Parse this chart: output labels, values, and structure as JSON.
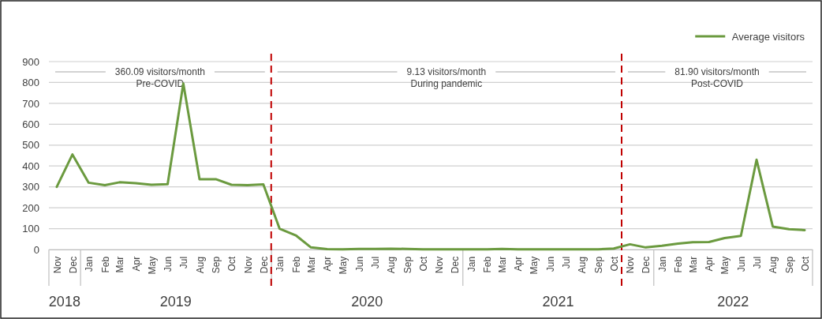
{
  "chart_data": {
    "type": "line",
    "x": [
      "2018-11",
      "2018-12",
      "2019-01",
      "2019-02",
      "2019-03",
      "2019-04",
      "2019-05",
      "2019-06",
      "2019-07",
      "2019-08",
      "2019-09",
      "2019-10",
      "2019-11",
      "2019-12",
      "2020-01",
      "2020-02",
      "2020-03",
      "2020-04",
      "2020-05",
      "2020-06",
      "2020-07",
      "2020-08",
      "2020-09",
      "2020-10",
      "2020-11",
      "2020-12",
      "2021-01",
      "2021-02",
      "2021-03",
      "2021-04",
      "2021-05",
      "2021-06",
      "2021-07",
      "2021-08",
      "2021-09",
      "2021-10",
      "2021-11",
      "2021-12",
      "2022-01",
      "2022-02",
      "2022-03",
      "2022-04",
      "2022-05",
      "2022-06",
      "2022-07",
      "2022-08",
      "2022-09",
      "2022-10"
    ],
    "series": [
      {
        "name": "Average visitors",
        "color": "#6b9a3f",
        "values": [
          300,
          455,
          320,
          308,
          322,
          318,
          310,
          313,
          795,
          337,
          337,
          310,
          308,
          312,
          100,
          68,
          10,
          2,
          1,
          3,
          3,
          4,
          3,
          1,
          1,
          1,
          1,
          1,
          3,
          1,
          1,
          1,
          1,
          1,
          1,
          5,
          25,
          10,
          18,
          28,
          35,
          36,
          55,
          65,
          430,
          110,
          97,
          93
        ]
      }
    ],
    "xlim": [
      "2018-10-17",
      "2022-10-16"
    ],
    "xticks": [
      {
        "value": "2018-11",
        "label": "Nov"
      },
      {
        "value": "2018-12",
        "label": "Dec"
      },
      {
        "value": "2019-01",
        "label": "Jan"
      },
      {
        "value": "2019-02",
        "label": "Feb"
      },
      {
        "value": "2019-03",
        "label": "Mar"
      },
      {
        "value": "2019-04",
        "label": "Apr"
      },
      {
        "value": "2019-05",
        "label": "May"
      },
      {
        "value": "2019-06",
        "label": "Jun"
      },
      {
        "value": "2019-07",
        "label": "Jul"
      },
      {
        "value": "2019-08",
        "label": "Aug"
      },
      {
        "value": "2019-09",
        "label": "Sep"
      },
      {
        "value": "2019-10",
        "label": "Oct"
      },
      {
        "value": "2019-11",
        "label": "Nov"
      },
      {
        "value": "2019-12",
        "label": "Dec"
      },
      {
        "value": "2020-01",
        "label": "Jan"
      },
      {
        "value": "2020-02",
        "label": "Feb"
      },
      {
        "value": "2020-03",
        "label": "Mar"
      },
      {
        "value": "2020-04",
        "label": "Apr"
      },
      {
        "value": "2020-05",
        "label": "May"
      },
      {
        "value": "2020-06",
        "label": "Jun"
      },
      {
        "value": "2020-07",
        "label": "Jul"
      },
      {
        "value": "2020-08",
        "label": "Aug"
      },
      {
        "value": "2020-09",
        "label": "Sep"
      },
      {
        "value": "2020-10",
        "label": "Oct"
      },
      {
        "value": "2020-11",
        "label": "Nov"
      },
      {
        "value": "2020-12",
        "label": "Dec"
      },
      {
        "value": "2021-01",
        "label": "Jan"
      },
      {
        "value": "2021-02",
        "label": "Feb"
      },
      {
        "value": "2021-03",
        "label": "Mar"
      },
      {
        "value": "2021-04",
        "label": "Apr"
      },
      {
        "value": "2021-05",
        "label": "May"
      },
      {
        "value": "2021-06",
        "label": "Jun"
      },
      {
        "value": "2021-07",
        "label": "Jul"
      },
      {
        "value": "2021-08",
        "label": "Aug"
      },
      {
        "value": "2021-09",
        "label": "Sep"
      },
      {
        "value": "2021-10",
        "label": "Oct"
      },
      {
        "value": "2021-11",
        "label": "Nov"
      },
      {
        "value": "2021-12",
        "label": "Dec"
      },
      {
        "value": "2022-01",
        "label": "Jan"
      },
      {
        "value": "2022-02",
        "label": "Feb"
      },
      {
        "value": "2022-03",
        "label": "Mar"
      },
      {
        "value": "2022-04",
        "label": "Apr"
      },
      {
        "value": "2022-05",
        "label": "May"
      },
      {
        "value": "2022-06",
        "label": "Jun"
      },
      {
        "value": "2022-07",
        "label": "Jul"
      },
      {
        "value": "2022-08",
        "label": "Aug"
      },
      {
        "value": "2022-09",
        "label": "Sep"
      },
      {
        "value": "2022-10",
        "label": "Oct"
      }
    ],
    "ylim": [
      0,
      900
    ],
    "yticks": [
      0,
      100,
      200,
      300,
      400,
      500,
      600,
      700,
      800,
      900
    ],
    "grid": "y",
    "legend": "top right",
    "line_style": "solid",
    "marker": "none",
    "ref_lines": [
      {
        "axis": "x",
        "value": "2019-12-16",
        "color": "#c00000",
        "line_style": "dashed"
      },
      {
        "axis": "x",
        "value": "2021-10-16",
        "color": "#c00000",
        "line_style": "dashed"
      }
    ],
    "annotations": [
      "360.09 visitors/month\nPre-COVID",
      "9.13 visitors/month\nDuring pandemic",
      "81.90 visitors/month\nPost-COVID",
      "2018",
      "2019",
      "2020",
      "2021",
      "2022"
    ]
  }
}
